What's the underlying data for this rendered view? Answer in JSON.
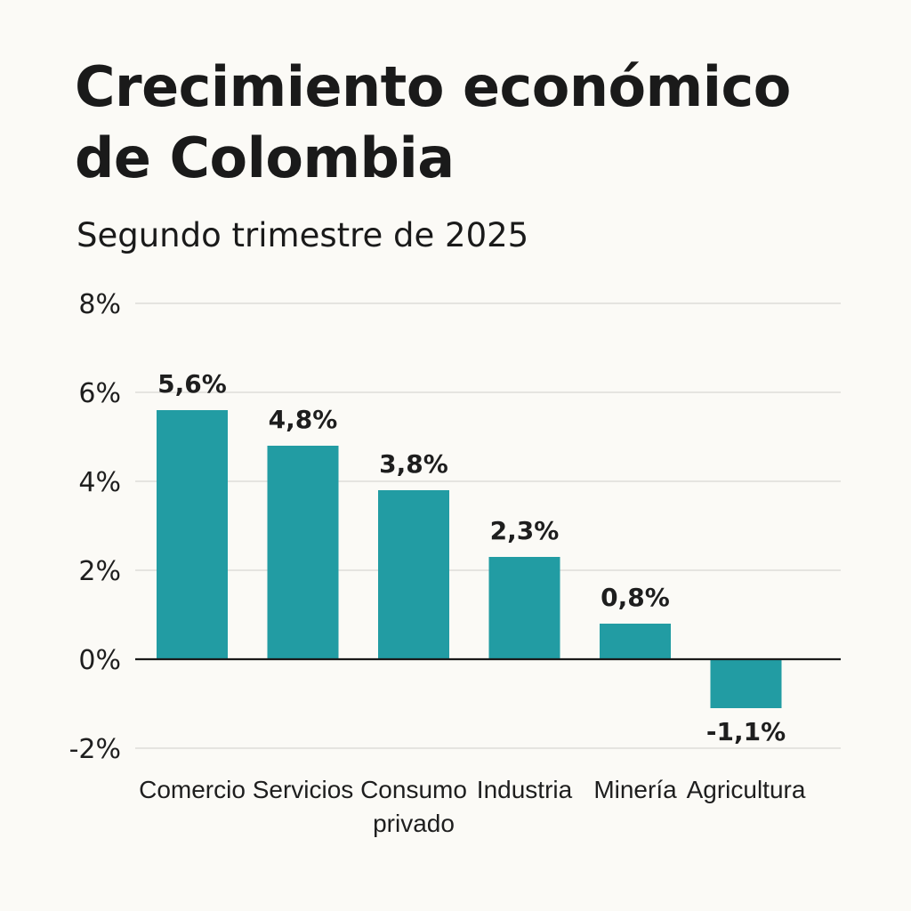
{
  "chart_data": {
    "type": "bar",
    "title_lines": [
      "Crecimiento económico",
      "de Colombia"
    ],
    "subtitle": "Segundo trimestre de 2025",
    "categories": [
      [
        "Comercio"
      ],
      [
        "Servicios"
      ],
      [
        "Consumo",
        "privado"
      ],
      [
        "Industria"
      ],
      [
        "Minería"
      ],
      [
        "Agricultura"
      ]
    ],
    "values": [
      5.6,
      4.8,
      3.8,
      2.3,
      0.8,
      -1.1
    ],
    "value_labels": [
      "5,6%",
      "4,8%",
      "3,8%",
      "2,3%",
      "0,8%",
      "-1,1%"
    ],
    "ylim": [
      -2,
      8
    ],
    "y_ticks": [
      8,
      6,
      4,
      2,
      0,
      -2
    ],
    "y_tick_labels": [
      "8%",
      "6%",
      "4%",
      "2%",
      "0%",
      "-2%"
    ],
    "xlabel": "",
    "ylabel": "",
    "grid": true,
    "bar_color": "#229ca3",
    "grid_color": "#d8d8d4",
    "zero_line_color": "#1a1a1a"
  }
}
